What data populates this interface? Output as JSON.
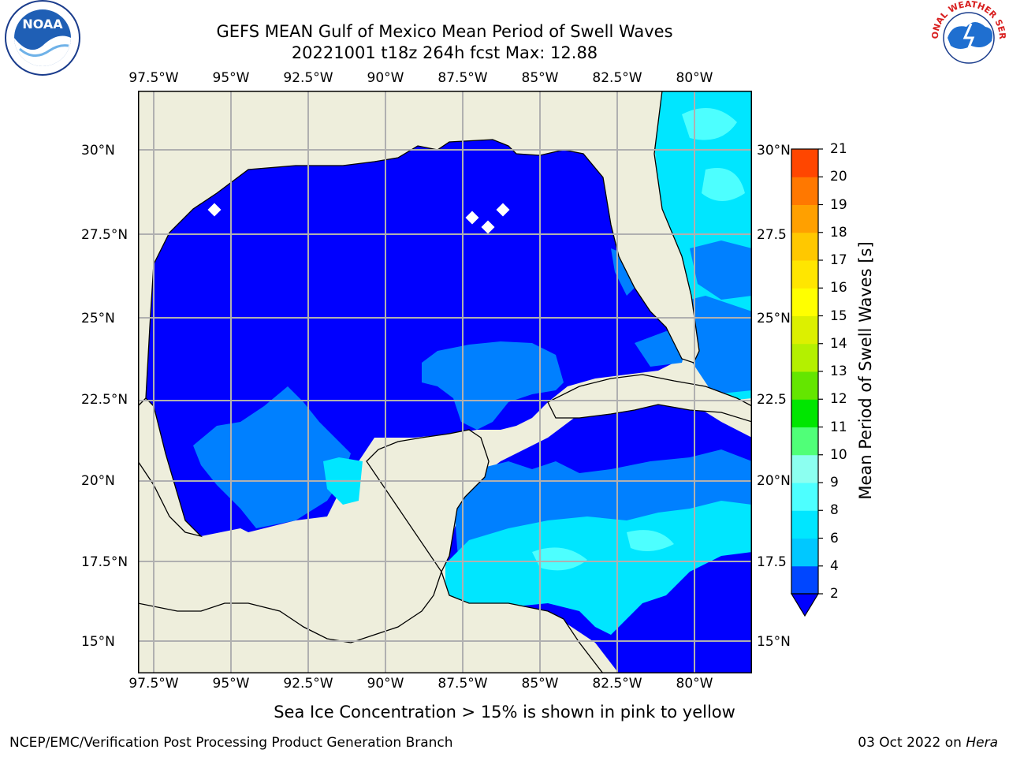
{
  "title": {
    "line1": "GEFS MEAN Gulf of Mexico Mean Period of Swell Waves",
    "line2": "20221001 t18z 264h fcst   Max: 12.88"
  },
  "axes": {
    "lon_labels": [
      "97.5°W",
      "95°W",
      "92.5°W",
      "90°W",
      "87.5°W",
      "85°W",
      "82.5°W",
      "80°W"
    ],
    "lat_labels_left": [
      "30°N",
      "27.5°N",
      "25°N",
      "22.5°N",
      "20°N",
      "17.5°N",
      "15°N"
    ],
    "lat_labels_right": [
      "30°N",
      "27.5",
      "25°N",
      "22.5",
      "20°N",
      "17.5",
      "15°N"
    ]
  },
  "colorbar": {
    "label": "Mean Period of Swell Waves [s]",
    "ticks": [
      "2",
      "4",
      "6",
      "8",
      "9",
      "10",
      "11",
      "12",
      "13",
      "14",
      "15",
      "16",
      "17",
      "18",
      "19",
      "20",
      "21"
    ],
    "colors": [
      "#0046ff",
      "#00c8ff",
      "#00e6ff",
      "#4dffff",
      "#8cfff0",
      "#50ff78",
      "#00e600",
      "#64e600",
      "#b4f000",
      "#dcf000",
      "#ffff00",
      "#ffe600",
      "#ffc800",
      "#ffa000",
      "#ff7800",
      "#ff4600",
      "#ff0000"
    ],
    "under_color": "#0000ff"
  },
  "map_colors": {
    "land": "#eeeedc",
    "period_2_4": "#0000ff",
    "period_4_6": "#0080ff",
    "period_6_8": "#00e6ff",
    "period_8_9": "#4dffff",
    "period_green": "#00e600"
  },
  "chart_data": {
    "type": "heatmap",
    "title": "GEFS MEAN Gulf of Mexico Mean Period of Swell Waves",
    "subtitle": "20221001 t18z 264h fcst   Max: 12.88",
    "lon_range": [
      -98.5,
      -78.5
    ],
    "lat_range": [
      14.0,
      31.8
    ],
    "max_value": 12.88,
    "colorbar_range": [
      2,
      21
    ],
    "colorbar_label": "Mean Period of Swell Waves [s]"
  },
  "footer": {
    "note": "Sea Ice Concentration > 15% is shown in pink to yellow",
    "left_credit": "NCEP/EMC/Verification Post Processing Product Generation Branch",
    "right_credit_date": "03 Oct 2022 on ",
    "right_credit_host": "Hera"
  },
  "logos": {
    "left": "noaa-logo",
    "left_text": "NOAA",
    "right": "nws-logo",
    "right_text": "NATIONAL WEATHER SERVICE"
  }
}
